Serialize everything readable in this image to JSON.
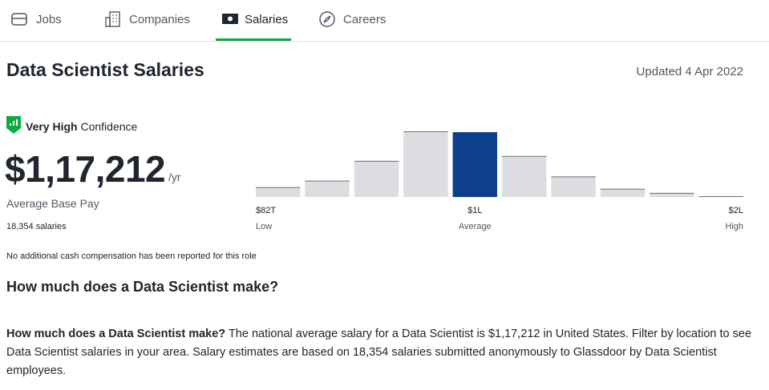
{
  "nav": [
    {
      "label": "Jobs"
    },
    {
      "label": "Companies"
    },
    {
      "label": "Salaries"
    },
    {
      "label": "Careers"
    }
  ],
  "header": {
    "title": "Data Scientist Salaries",
    "updated": "Updated 4 Apr 2022"
  },
  "confidence": {
    "level": "Very High",
    "label": "Confidence"
  },
  "pay": {
    "amount": "$1,17,212",
    "unit": "/yr",
    "label": "Average Base Pay",
    "count": "18,354 salaries",
    "note": "No additional cash compensation has been reported for this role"
  },
  "chart_data": {
    "type": "bar",
    "categories": [
      null,
      null,
      null,
      null,
      null,
      null,
      null,
      null,
      null,
      null
    ],
    "values": [
      12,
      20,
      44,
      80,
      79,
      50,
      25,
      10,
      5,
      1
    ],
    "colors": [
      "#dcdde0",
      "#dcdde0",
      "#dcdde0",
      "#dcdde0",
      "#0d3f8a",
      "#dcdde0",
      "#dcdde0",
      "#dcdde0",
      "#dcdde0",
      "#dcdde0"
    ],
    "x_labels": [
      {
        "value": "$82T",
        "caption": "Low"
      },
      {
        "value": "$1L",
        "caption": "Average"
      },
      {
        "value": "$2L",
        "caption": "High"
      }
    ]
  },
  "section": {
    "heading": "How much does a Data Scientist make?",
    "lead": "How much does a Data Scientist make?",
    "text": "The national average salary for a Data Scientist is $1,17,212 in United States. Filter by location to see Data Scientist salaries in your area. Salary estimates are based on 18,354 salaries submitted anonymously to Glassdoor by Data Scientist employees."
  }
}
